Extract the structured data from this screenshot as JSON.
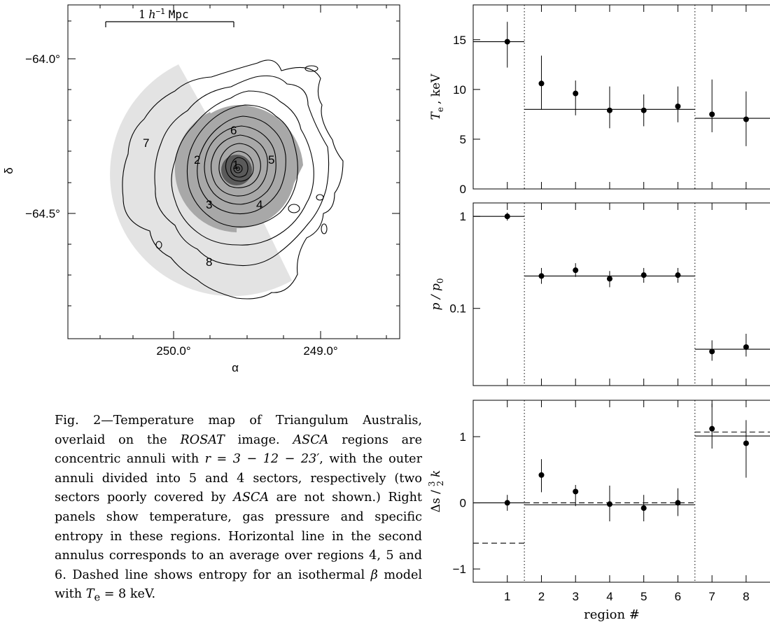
{
  "map": {
    "ytick_labels": [
      "−64.0°",
      "−64.5°"
    ],
    "xtick_labels": [
      "250.0°",
      "249.0°"
    ],
    "xlabel": "α",
    "ylabel": "δ",
    "scalebar_label_pre": "1",
    "scalebar_label_h": "h",
    "scalebar_label_sup": "−1",
    "scalebar_label_unit": "Mpc",
    "region_labels": [
      "1",
      "2",
      "3",
      "4",
      "5",
      "6",
      "7",
      "8"
    ],
    "colors": {
      "outer_sector": "#e3e3e3",
      "mid_sector": "#a8a8a8",
      "core": "#5a5a5a"
    }
  },
  "caption": {
    "label": "Fig. 2",
    "text_1": "—Temperature map of Triangulum Australis, overlaid on the ",
    "rosat": "ROSAT",
    "text_2": " image. ",
    "asca_1": "ASCA",
    "text_3": " regions are concentric annuli with ",
    "r_expr": "r = 3 − 12 − 23′",
    "text_4": ", with the outer annuli divided into 5 and 4 sectors, respectively (two sectors poorly covered by ",
    "asca_2": "ASCA",
    "text_5": " are not shown.) Right panels show temperature, gas pressure and specific entropy in these regions. Horizontal line in the second annulus corresponds to an average over regions 4, 5 and 6. Dashed line shows entropy for an isothermal ",
    "beta": "β",
    "text_6": " model with ",
    "te_expr": "T",
    "te_sub": "e",
    "text_7": " = 8 keV."
  },
  "chart_data": [
    {
      "type": "scatter",
      "panel": "temperature",
      "ylabel_main": "T",
      "ylabel_sub": "e",
      "ylabel_unit": ", keV",
      "ylim": [
        0,
        18.5
      ],
      "yticks": [
        0,
        5,
        10,
        15
      ],
      "ytick_labels": [
        "0",
        "5",
        "10",
        "15"
      ],
      "x": [
        1,
        2,
        3,
        4,
        5,
        6,
        7,
        8
      ],
      "y": [
        14.8,
        10.6,
        9.6,
        7.9,
        7.9,
        8.3,
        7.5,
        7.0
      ],
      "yerr_low": [
        2.6,
        2.6,
        2.2,
        1.8,
        1.6,
        1.6,
        1.8,
        2.7
      ],
      "yerr_high": [
        2.0,
        2.8,
        1.3,
        2.4,
        1.6,
        2.0,
        3.5,
        2.8
      ],
      "hlines": [
        {
          "x": [
            0.0,
            1.5
          ],
          "y": 14.8,
          "style": "solid"
        },
        {
          "x": [
            1.5,
            6.5
          ],
          "y": 8.0,
          "style": "solid"
        },
        {
          "x": [
            6.5,
            8.7
          ],
          "y": 7.1,
          "style": "solid"
        }
      ],
      "vlines": [
        1.5,
        6.5
      ]
    },
    {
      "type": "scatter",
      "panel": "pressure",
      "ylabel_main": "p / p",
      "ylabel_sub": "0",
      "yscale": "log",
      "ylim": [
        0.0145,
        1.4
      ],
      "yticks": [
        1,
        0.1
      ],
      "ytick_labels": [
        "1",
        "0.1"
      ],
      "x": [
        1,
        2,
        3,
        4,
        5,
        6,
        7,
        8
      ],
      "y": [
        1.0,
        0.225,
        0.26,
        0.21,
        0.23,
        0.23,
        0.034,
        0.038
      ],
      "yerr_low": [
        0.1,
        0.04,
        0.04,
        0.04,
        0.04,
        0.04,
        0.007,
        0.008
      ],
      "yerr_high": [
        0.1,
        0.05,
        0.05,
        0.045,
        0.045,
        0.045,
        0.011,
        0.015
      ],
      "hlines": [
        {
          "x": [
            0.0,
            1.5
          ],
          "y": 1.0,
          "style": "solid"
        },
        {
          "x": [
            1.5,
            6.5
          ],
          "y": 0.225,
          "style": "solid"
        },
        {
          "x": [
            6.5,
            8.7
          ],
          "y": 0.036,
          "style": "solid"
        }
      ],
      "vlines": [
        1.5,
        6.5
      ]
    },
    {
      "type": "scatter",
      "panel": "entropy",
      "ylabel_main": "Δs /",
      "ylabel_frac_num": "3",
      "ylabel_frac_den": "2",
      "ylabel_k": "k",
      "ylim": [
        -1.2,
        1.55
      ],
      "yticks": [
        -1,
        0,
        1
      ],
      "ytick_labels": [
        "−1",
        "0",
        "1"
      ],
      "xlim": [
        0,
        8.7
      ],
      "xticks": [
        1,
        2,
        3,
        4,
        5,
        6,
        7,
        8
      ],
      "xtick_labels": [
        "1",
        "2",
        "3",
        "4",
        "5",
        "6",
        "7",
        "8"
      ],
      "xlabel": "region #",
      "x": [
        1,
        2,
        3,
        4,
        5,
        6,
        7,
        8
      ],
      "y": [
        0.0,
        0.42,
        0.17,
        -0.02,
        -0.08,
        0.0,
        1.12,
        0.9
      ],
      "yerr_low": [
        0.12,
        0.26,
        0.22,
        0.26,
        0.2,
        0.2,
        0.3,
        0.52
      ],
      "yerr_high": [
        0.12,
        0.24,
        0.1,
        0.28,
        0.2,
        0.22,
        0.38,
        0.35
      ],
      "hlines": [
        {
          "x": [
            0.0,
            1.5
          ],
          "y": 0.0,
          "style": "solid"
        },
        {
          "x": [
            0.0,
            1.5
          ],
          "y": -0.61,
          "style": "dashed"
        },
        {
          "x": [
            1.5,
            6.5
          ],
          "y": -0.03,
          "style": "solid"
        },
        {
          "x": [
            1.5,
            6.5
          ],
          "y": 0.0,
          "style": "dashed"
        },
        {
          "x": [
            6.5,
            8.7
          ],
          "y": 1.01,
          "style": "solid"
        },
        {
          "x": [
            6.5,
            8.7
          ],
          "y": 1.07,
          "style": "dashed"
        }
      ],
      "vlines": [
        1.5,
        6.5
      ]
    }
  ]
}
